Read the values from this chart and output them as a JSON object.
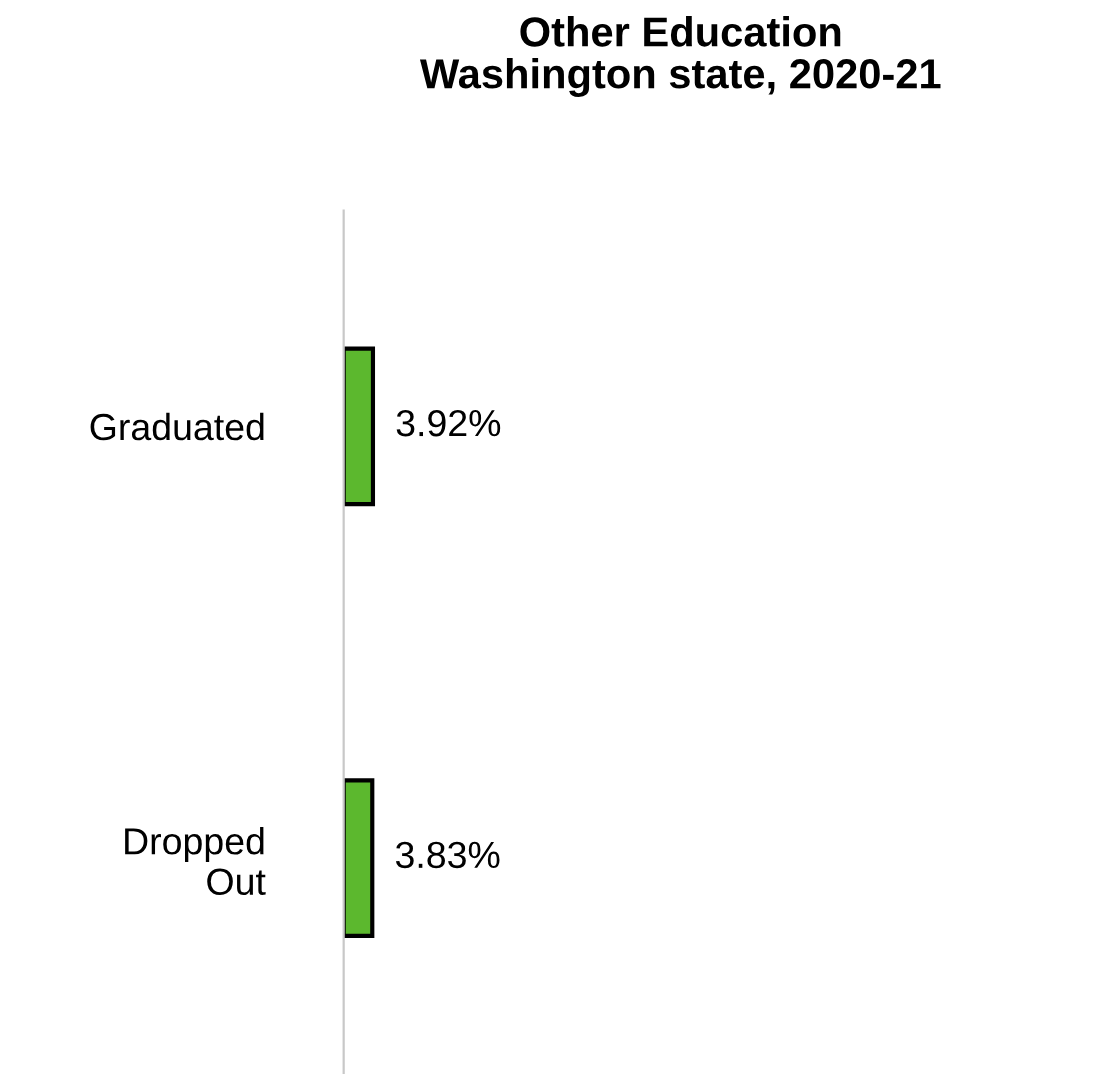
{
  "chart_data": {
    "type": "bar",
    "orientation": "horizontal",
    "title": "Other Education\nWashington state, 2020-21",
    "categories": [
      "Graduated",
      "Dropped\nOut"
    ],
    "values": [
      3.92,
      3.83
    ],
    "value_labels": [
      "3.92%",
      "3.83%"
    ],
    "color": "#5cb82e",
    "grid": false,
    "legend": false,
    "tick_labels": "y"
  }
}
